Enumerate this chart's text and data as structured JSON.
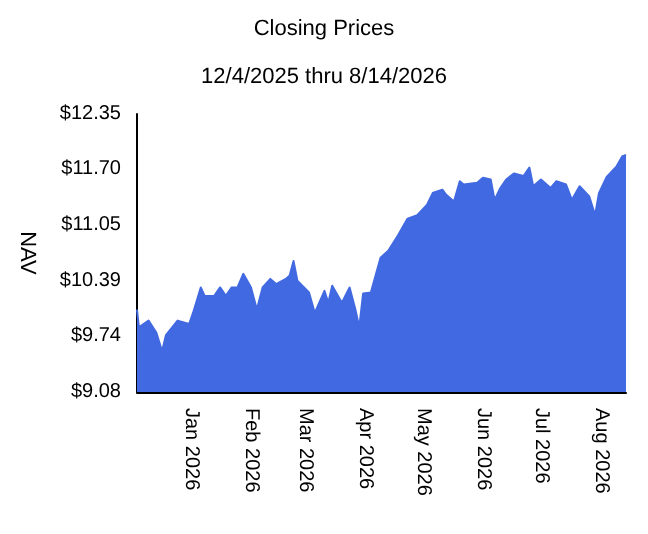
{
  "chart_data": {
    "type": "area",
    "title": "Closing Prices",
    "subtitle": "12/4/2025 thru 8/14/2026",
    "ylabel": "NAV",
    "x": [
      "2025-12-04",
      "2025-12-05",
      "2025-12-10",
      "2025-12-14",
      "2025-12-17",
      "2025-12-19",
      "2025-12-25",
      "2025-12-31",
      "2026-01-02",
      "2026-01-06",
      "2026-01-08",
      "2026-01-13",
      "2026-01-16",
      "2026-01-19",
      "2026-01-22",
      "2026-01-25",
      "2026-01-28",
      "2026-02-01",
      "2026-02-04",
      "2026-02-07",
      "2026-02-11",
      "2026-02-14",
      "2026-02-19",
      "2026-02-21",
      "2026-02-23",
      "2026-02-25",
      "2026-03-03",
      "2026-03-06",
      "2026-03-11",
      "2026-03-13",
      "2026-03-15",
      "2026-03-20",
      "2026-03-24",
      "2026-03-27",
      "2026-03-29",
      "2026-03-31",
      "2026-04-04",
      "2026-04-09",
      "2026-04-13",
      "2026-04-18",
      "2026-04-23",
      "2026-04-28",
      "2026-05-03",
      "2026-05-06",
      "2026-05-11",
      "2026-05-13",
      "2026-05-17",
      "2026-05-20",
      "2026-05-22",
      "2026-05-29",
      "2026-06-01",
      "2026-06-05",
      "2026-06-07",
      "2026-06-10",
      "2026-06-13",
      "2026-06-17",
      "2026-06-22",
      "2026-06-25",
      "2026-06-27",
      "2026-07-01",
      "2026-07-06",
      "2026-07-09",
      "2026-07-14",
      "2026-07-17",
      "2026-07-21",
      "2026-07-26",
      "2026-07-29",
      "2026-07-31",
      "2026-08-04",
      "2026-08-09",
      "2026-08-12",
      "2026-08-14"
    ],
    "series": [
      {
        "color": "#4169e1",
        "values": [
          10.05,
          9.84,
          9.92,
          9.78,
          9.56,
          9.75,
          9.92,
          9.88,
          10.01,
          10.31,
          10.21,
          10.21,
          10.31,
          10.21,
          10.31,
          10.31,
          10.47,
          10.31,
          10.05,
          10.31,
          10.41,
          10.35,
          10.41,
          10.45,
          10.62,
          10.39,
          10.25,
          10.01,
          10.27,
          10.13,
          10.33,
          10.13,
          10.31,
          10.05,
          9.84,
          10.24,
          10.25,
          10.66,
          10.74,
          10.92,
          11.12,
          11.16,
          11.28,
          11.42,
          11.46,
          11.4,
          11.32,
          11.56,
          11.52,
          11.54,
          11.6,
          11.58,
          11.34,
          11.48,
          11.58,
          11.65,
          11.62,
          11.72,
          11.5,
          11.58,
          11.48,
          11.56,
          11.52,
          11.34,
          11.5,
          11.38,
          11.16,
          11.42,
          11.61,
          11.73,
          11.85,
          11.87
        ]
      }
    ],
    "xlim": [
      "2025-12-04",
      "2026-08-14"
    ],
    "xticks": [
      {
        "value": "2026-01-01",
        "label": "Jan 2026"
      },
      {
        "value": "2026-02-01",
        "label": "Feb 2026"
      },
      {
        "value": "2026-03-01",
        "label": "Mar 2026"
      },
      {
        "value": "2026-04-01",
        "label": "Apr 2026"
      },
      {
        "value": "2026-05-01",
        "label": "May 2026"
      },
      {
        "value": "2026-06-01",
        "label": "Jun 2026"
      },
      {
        "value": "2026-07-01",
        "label": "Jul 2026"
      },
      {
        "value": "2026-08-01",
        "label": "Aug 2026"
      }
    ],
    "ylim": [
      9.08,
      12.35
    ],
    "yticks": [
      {
        "value": 9.08,
        "label": "$9.08"
      },
      {
        "value": 9.74,
        "label": "$9.74"
      },
      {
        "value": 10.39,
        "label": "$10.39"
      },
      {
        "value": 11.05,
        "label": "$11.05"
      },
      {
        "value": 11.7,
        "label": "$11.70"
      },
      {
        "value": 12.35,
        "label": "$12.35"
      }
    ],
    "line_style": "solid"
  }
}
